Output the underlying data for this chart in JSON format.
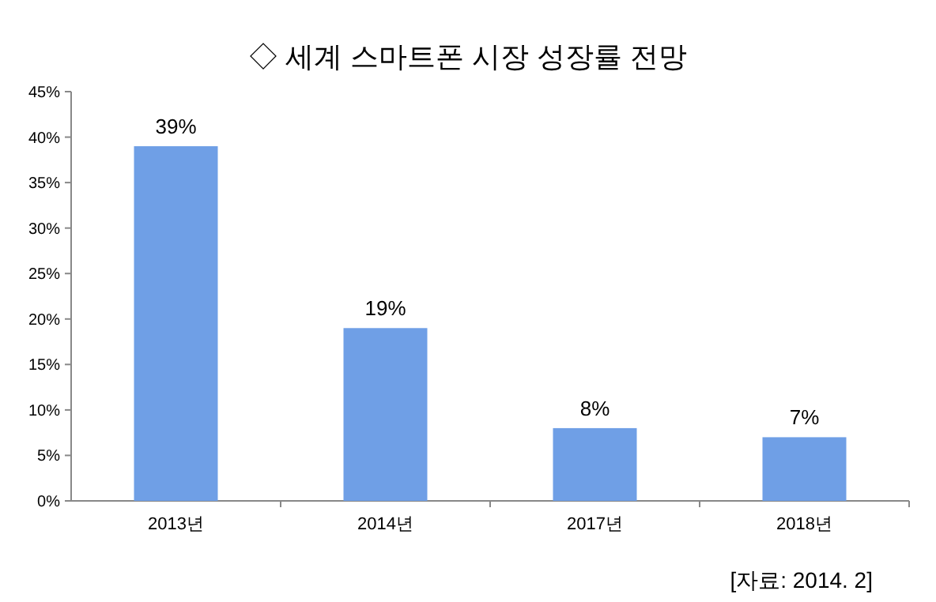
{
  "chart_data": {
    "type": "bar",
    "title": "◇ 세계 스마트폰 시장 성장률 전망",
    "categories": [
      "2013년",
      "2014년",
      "2017년",
      "2018년"
    ],
    "values": [
      39,
      19,
      8,
      7
    ],
    "value_labels": [
      "39%",
      "19%",
      "8%",
      "7%"
    ],
    "color": "#6f9fe6",
    "ylim": [
      0,
      45
    ],
    "yticks": [
      {
        "value": 0,
        "label": "0%"
      },
      {
        "value": 5,
        "label": "5%"
      },
      {
        "value": 10,
        "label": "10%"
      },
      {
        "value": 15,
        "label": "15%"
      },
      {
        "value": 20,
        "label": "20%"
      },
      {
        "value": 25,
        "label": "25%"
      },
      {
        "value": 30,
        "label": "30%"
      },
      {
        "value": 35,
        "label": "35%"
      },
      {
        "value": 40,
        "label": "40%"
      },
      {
        "value": 45,
        "label": "45%"
      }
    ],
    "grid": false,
    "annotations": [
      "[자료: 2014. 2]"
    ]
  }
}
